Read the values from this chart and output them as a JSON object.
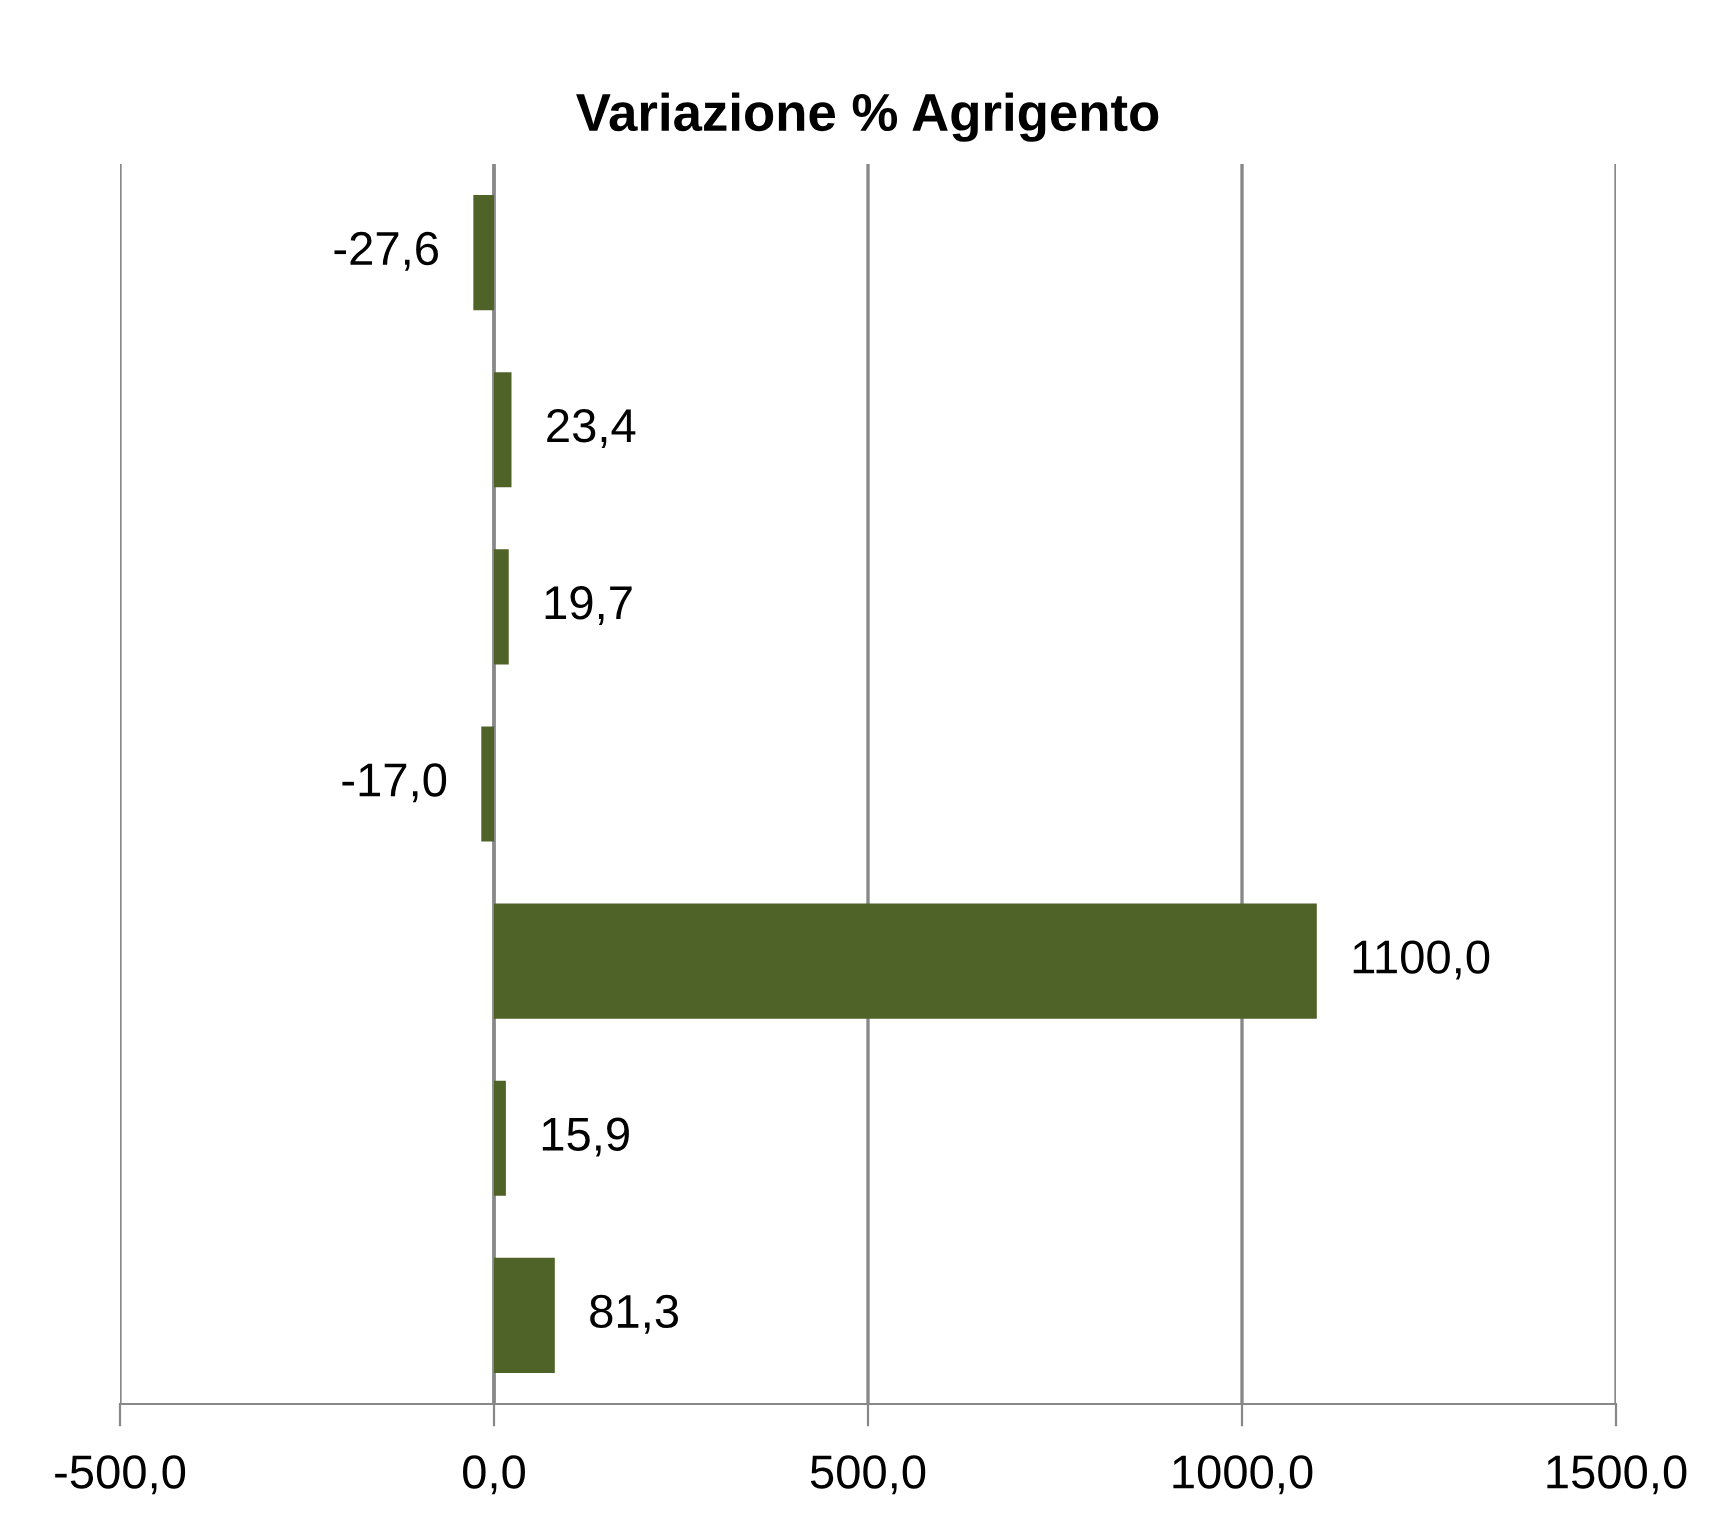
{
  "chart_data": {
    "type": "bar",
    "orientation": "horizontal",
    "title": "Variazione % Agrigento",
    "categories": [
      null,
      null,
      null,
      null,
      null,
      null,
      null
    ],
    "values": [
      -27.6,
      23.4,
      19.7,
      -17.0,
      1100.0,
      15.9,
      81.3
    ],
    "value_labels": [
      "-27,6",
      "23,4",
      "19,7",
      "-17,0",
      "1100,0",
      "15,9",
      "81,3"
    ],
    "color": "#4f6228",
    "xlim": [
      -500,
      1500
    ],
    "xticks": [
      {
        "value": -500,
        "label": "-500,0"
      },
      {
        "value": 0,
        "label": "0,0"
      },
      {
        "value": 500,
        "label": "500,0"
      },
      {
        "value": 1000,
        "label": "1000,0"
      },
      {
        "value": 1500,
        "label": "1500,0"
      }
    ],
    "grid": "x",
    "legend": false
  }
}
